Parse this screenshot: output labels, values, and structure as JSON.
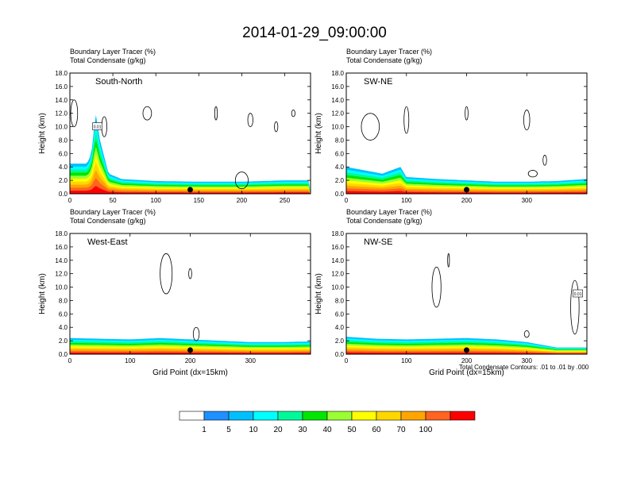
{
  "figure_title": "2014-01-29_09:00:00",
  "contour_note": "Total Condensate Contours: .01 to .01 by .000",
  "colorbar": {
    "labels": [
      "1",
      "5",
      "10",
      "20",
      "30",
      "40",
      "50",
      "60",
      "70",
      "100"
    ],
    "colors": [
      "#ffffff",
      "#1e90ff",
      "#00bfff",
      "#00ffff",
      "#00fa9a",
      "#00e600",
      "#9aff32",
      "#ffff00",
      "#ffd700",
      "#ffa500",
      "#ff6420",
      "#ff0000"
    ]
  },
  "chart_data": [
    {
      "type": "heatmap",
      "panel": "top-left",
      "title_line1": "Boundary Layer Tracer   (%)",
      "title_line2": "Total Condensate   (g/kg)",
      "label": "South-North",
      "ylabel": "Height (km)",
      "xlabel": "",
      "xlim": [
        0,
        280
      ],
      "ylim": [
        0,
        18
      ],
      "xticks": [
        "0",
        "50",
        "100",
        "150",
        "200",
        "250"
      ],
      "yticks": [
        "0.0",
        "2.0",
        "4.0",
        "6.0",
        "8.0",
        "10.0",
        "12.0",
        "14.0",
        "16.0",
        "18.0"
      ],
      "marker_x": 140,
      "pbl_top": [
        [
          0,
          4.5
        ],
        [
          20,
          4.5
        ],
        [
          25,
          6
        ],
        [
          30,
          12
        ],
        [
          35,
          8
        ],
        [
          45,
          3
        ],
        [
          60,
          2.2
        ],
        [
          100,
          1.9
        ],
        [
          150,
          1.8
        ],
        [
          200,
          1.8
        ],
        [
          250,
          2
        ],
        [
          280,
          2
        ]
      ],
      "contour_label": "0.01"
    },
    {
      "type": "heatmap",
      "panel": "top-right",
      "title_line1": "Boundary Layer Tracer   (%)",
      "title_line2": "Total Condensate   (g/kg)",
      "label": "SW-NE",
      "ylabel": "Height (km)",
      "xlabel": "",
      "xlim": [
        0,
        400
      ],
      "ylim": [
        0,
        18
      ],
      "xticks": [
        "0",
        "100",
        "200",
        "300"
      ],
      "yticks": [
        "0.0",
        "2.0",
        "4.0",
        "6.0",
        "8.0",
        "10.0",
        "12.0",
        "14.0",
        "16.0",
        "18.0"
      ],
      "marker_x": 200,
      "pbl_top": [
        [
          0,
          4
        ],
        [
          30,
          3.5
        ],
        [
          60,
          3
        ],
        [
          90,
          4
        ],
        [
          100,
          2.5
        ],
        [
          150,
          2.2
        ],
        [
          200,
          2
        ],
        [
          250,
          1.8
        ],
        [
          300,
          1.8
        ],
        [
          350,
          1.9
        ],
        [
          400,
          2.2
        ]
      ],
      "contour_label": ""
    },
    {
      "type": "heatmap",
      "panel": "bottom-left",
      "title_line1": "Boundary Layer Tracer   (%)",
      "title_line2": "Total Condensate   (g/kg)",
      "label": "West-East",
      "ylabel": "Height (km)",
      "xlabel": "Grid Point (dx=15km)",
      "xlim": [
        0,
        400
      ],
      "ylim": [
        0,
        18
      ],
      "xticks": [
        "0",
        "100",
        "200",
        "300"
      ],
      "yticks": [
        "0.0",
        "2.0",
        "4.0",
        "6.0",
        "8.0",
        "10.0",
        "12.0",
        "14.0",
        "16.0",
        "18.0"
      ],
      "marker_x": 200,
      "pbl_top": [
        [
          0,
          2.4
        ],
        [
          50,
          2.3
        ],
        [
          100,
          2.2
        ],
        [
          150,
          2.4
        ],
        [
          200,
          2.2
        ],
        [
          250,
          2
        ],
        [
          300,
          1.8
        ],
        [
          350,
          1.8
        ],
        [
          400,
          1.9
        ]
      ],
      "contour_label": ""
    },
    {
      "type": "heatmap",
      "panel": "bottom-right",
      "title_line1": "Boundary Layer Tracer   (%)",
      "title_line2": "Total Condensate   (g/kg)",
      "label": "NW-SE",
      "ylabel": "Height (km)",
      "xlabel": "Grid Point (dx=15km)",
      "xlim": [
        0,
        400
      ],
      "ylim": [
        0,
        18
      ],
      "xticks": [
        "0",
        "100",
        "200",
        "300"
      ],
      "yticks": [
        "0.0",
        "2.0",
        "4.0",
        "6.0",
        "8.0",
        "10.0",
        "12.0",
        "14.0",
        "16.0",
        "18.0"
      ],
      "marker_x": 200,
      "pbl_top": [
        [
          0,
          2.6
        ],
        [
          50,
          2.3
        ],
        [
          100,
          2.2
        ],
        [
          150,
          2.3
        ],
        [
          200,
          2.4
        ],
        [
          250,
          2.2
        ],
        [
          300,
          1.8
        ],
        [
          350,
          1
        ],
        [
          400,
          1
        ]
      ],
      "contour_label": "0.01"
    }
  ]
}
